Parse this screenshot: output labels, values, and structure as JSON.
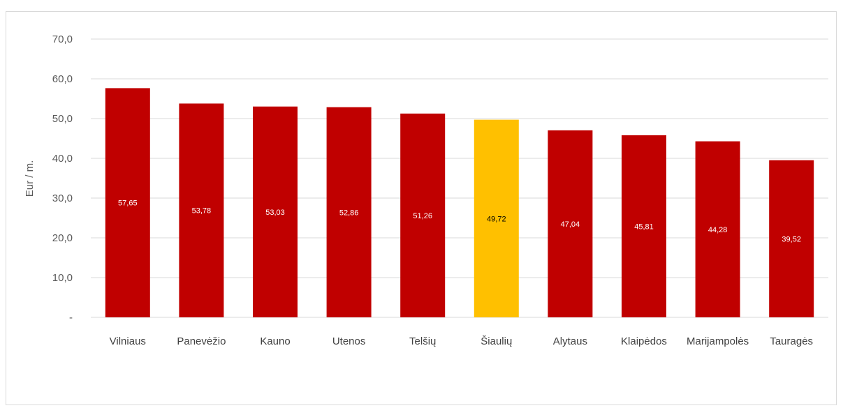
{
  "chart_data": {
    "type": "bar",
    "ylabel": "Eur / m.",
    "ylim": [
      0,
      70
    ],
    "y_ticks": [
      0,
      10,
      20,
      30,
      40,
      50,
      60,
      70
    ],
    "y_tick_labels": [
      "-",
      "10,0",
      "20,0",
      "30,0",
      "40,0",
      "50,0",
      "60,0",
      "70,0"
    ],
    "categories": [
      "Vilniaus",
      "Panevėžio",
      "Kauno",
      "Utenos",
      "Telšių",
      "Šiaulių",
      "Alytaus",
      "Klaipėdos",
      "Marijampolės",
      "Tauragės"
    ],
    "values": [
      57.65,
      53.78,
      53.03,
      52.86,
      51.26,
      49.72,
      47.04,
      45.81,
      44.28,
      39.52
    ],
    "data_labels": [
      "57,65",
      "53,78",
      "53,03",
      "52,86",
      "51,26",
      "49,72",
      "47,04",
      "45,81",
      "44,28",
      "39,52"
    ],
    "highlight_index": 5,
    "grid": true,
    "colors": {
      "bar": "#c00000",
      "highlight": "#ffc000",
      "label_on_bar": "#ffffff",
      "label_on_highlight": "#000000",
      "grid": "#d9d9d9"
    }
  }
}
